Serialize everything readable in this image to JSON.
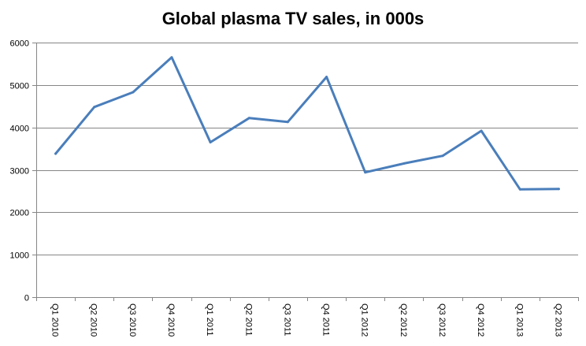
{
  "chart_data": {
    "type": "line",
    "title": "Global plasma TV sales, in 000s",
    "xlabel": "",
    "ylabel": "",
    "categories": [
      "Q1 2010",
      "Q2 2010",
      "Q3 2010",
      "Q4 2010",
      "Q1 2011",
      "Q2 2011",
      "Q3 2011",
      "Q4 2011",
      "Q1 2012",
      "Q2 2012",
      "Q3 2012",
      "Q4 2012",
      "Q1 2013",
      "Q2 2013"
    ],
    "series": [
      {
        "values": [
          3380,
          4480,
          4830,
          5650,
          3650,
          4220,
          4130,
          5190,
          2940,
          3150,
          3330,
          3920,
          2540,
          2550
        ]
      }
    ],
    "ylim": [
      0,
      6000
    ],
    "yticks": [
      "0",
      "1000",
      "2000",
      "3000",
      "4000",
      "5000",
      "6000"
    ],
    "grid": true,
    "legend": "none",
    "colors": {
      "line": "#4a7ebb",
      "grid": "#868686",
      "axis": "#868686"
    }
  }
}
